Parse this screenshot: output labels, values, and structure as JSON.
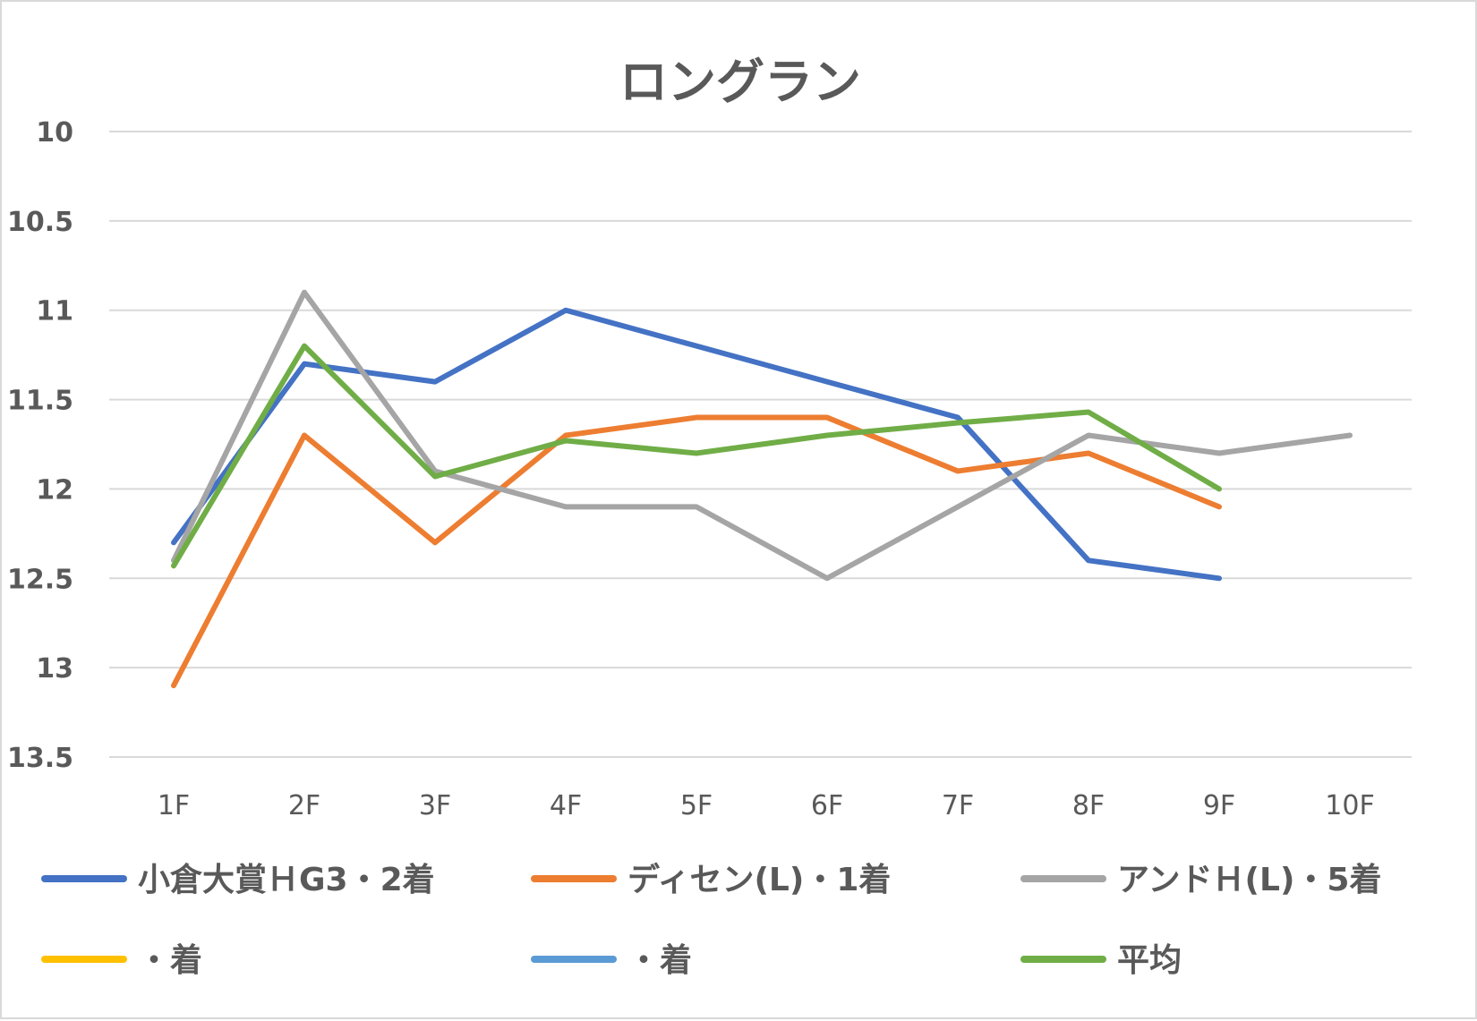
{
  "chart_data": {
    "type": "line",
    "title": "ロングラン",
    "categories": [
      "1F",
      "2F",
      "3F",
      "4F",
      "5F",
      "6F",
      "7F",
      "8F",
      "9F",
      "10F"
    ],
    "y_tick_labels": [
      "10",
      "10.5",
      "11",
      "11.5",
      "12",
      "12.5",
      "13",
      "13.5"
    ],
    "ylim": [
      10,
      13.5
    ],
    "y_reversed": true,
    "grid": true,
    "legend_position": "bottom",
    "series": [
      {
        "name": "小倉大賞ＨG3・2着",
        "color": "#4472c4",
        "values": [
          12.3,
          11.3,
          11.4,
          11.0,
          11.2,
          11.4,
          11.6,
          12.4,
          12.5,
          null
        ]
      },
      {
        "name": "ディセン(L)・1着",
        "color": "#ed7d31",
        "values": [
          13.1,
          11.7,
          12.3,
          11.7,
          11.6,
          11.6,
          11.9,
          11.8,
          12.1,
          null
        ]
      },
      {
        "name": "アンドＨ(L)・5着",
        "color": "#a5a5a5",
        "values": [
          12.4,
          10.9,
          11.9,
          12.1,
          12.1,
          12.5,
          12.1,
          11.7,
          11.8,
          11.7
        ]
      },
      {
        "name": "・着",
        "color": "#ffc000",
        "values": [
          null,
          null,
          null,
          null,
          null,
          null,
          null,
          null,
          null,
          null
        ]
      },
      {
        "name": "・着",
        "color": "#5b9bd5",
        "values": [
          null,
          null,
          null,
          null,
          null,
          null,
          null,
          null,
          null,
          null
        ]
      },
      {
        "name": "平均",
        "color": "#70ad47",
        "values": [
          12.43,
          11.2,
          11.93,
          11.73,
          11.8,
          11.7,
          11.63,
          11.57,
          12.0,
          null
        ]
      }
    ]
  }
}
